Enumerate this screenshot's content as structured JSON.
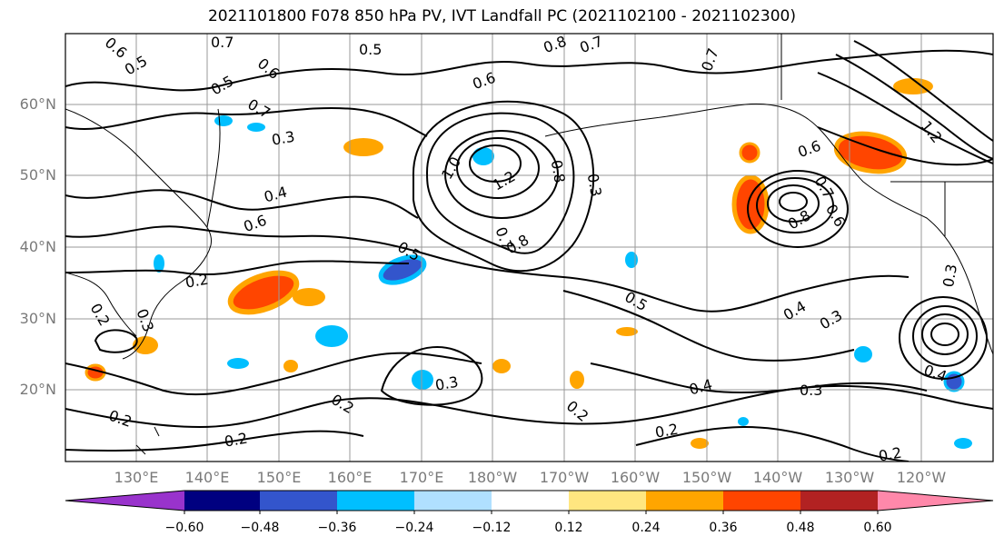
{
  "title": "2021101800 F078 850 hPa PV, IVT Landfall PC (2021102100 - 2021102300)",
  "lat_labels": [
    "60°N",
    "50°N",
    "40°N",
    "30°N",
    "20°N"
  ],
  "lon_labels": [
    "130°E",
    "140°E",
    "150°E",
    "160°E",
    "170°E",
    "180°W",
    "170°W",
    "160°W",
    "150°W",
    "140°W",
    "130°W",
    "120°W"
  ],
  "colorbar": {
    "ticks": [
      "−0.60",
      "−0.48",
      "−0.36",
      "−0.24",
      "−0.12",
      "0.12",
      "0.24",
      "0.36",
      "0.48",
      "0.60"
    ],
    "colors": [
      "#9933cc",
      "#000080",
      "#3355cc",
      "#00bfff",
      "#b0e0ff",
      "#ffffff",
      "#ffe680",
      "#ffa500",
      "#ff4500",
      "#b22222",
      "#ff88aa"
    ]
  },
  "contour_labels": [
    "0.6",
    "0.5",
    "0.7",
    "0.5",
    "0.8",
    "0.7",
    "0.6",
    "0.7",
    "0.5",
    "0.6",
    "0.7",
    "0.3",
    "0.6",
    "1.0",
    "1.2",
    "0.8",
    "0.3",
    "0.4",
    "0.6",
    "0.7",
    "0.8",
    "0.6",
    "0.5",
    "0.7",
    "0.8",
    "0.2",
    "0.2",
    "0.3",
    "0.5",
    "0.4",
    "0.3",
    "0.3",
    "0.3",
    "0.4",
    "0.2",
    "0.2",
    "0.2",
    "0.2",
    "0.2",
    "0.2",
    "0.3",
    "1.2",
    "0.4"
  ]
}
